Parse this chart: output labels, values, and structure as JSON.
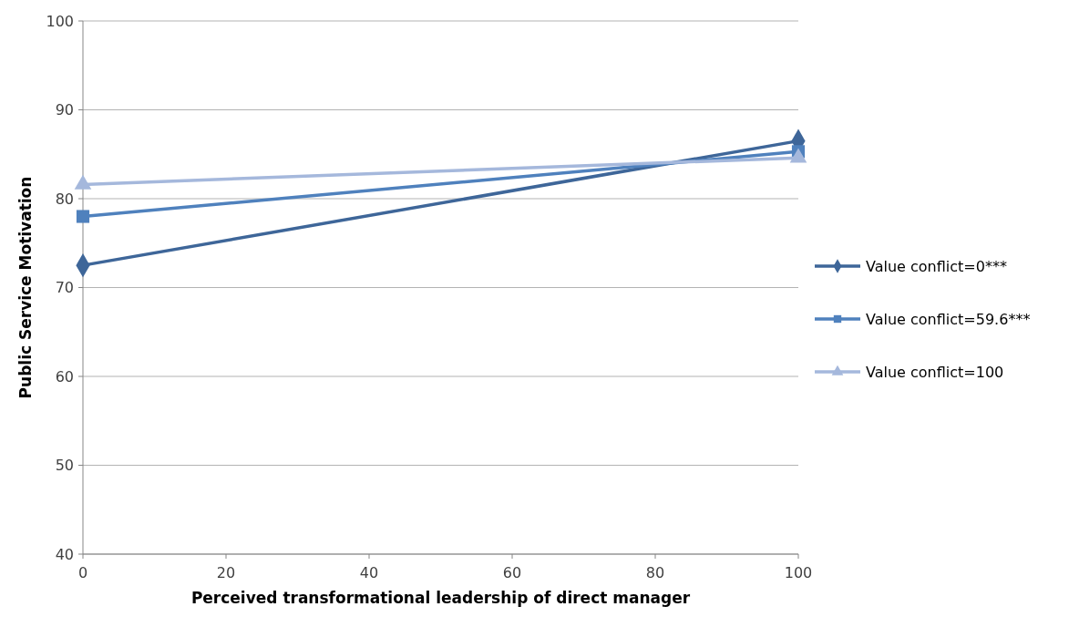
{
  "chart_data": {
    "type": "line",
    "xlabel": "Perceived transformational leadership of direct manager",
    "ylabel": "Public Service Motivation",
    "x": [
      0,
      100
    ],
    "series": [
      {
        "name": "Value conflict=0***",
        "color": "#3e6699",
        "values": [
          72.5,
          86.5
        ],
        "marker": "diamond"
      },
      {
        "name": "Value conflict=59.6***",
        "color": "#4f81bd",
        "values": [
          78,
          85.3
        ],
        "marker": "square"
      },
      {
        "name": "Value conflict=100",
        "color": "#a5b8dc",
        "values": [
          81.6,
          84.6
        ],
        "marker": "triangle"
      }
    ],
    "xlim": [
      0,
      100
    ],
    "xticks": [
      0,
      20,
      40,
      60,
      80,
      100
    ],
    "ylim": [
      40,
      100
    ],
    "yticks": [
      40,
      50,
      60,
      70,
      80,
      90,
      100
    ],
    "grid": "y",
    "legend": "right",
    "line_style": "solid"
  }
}
